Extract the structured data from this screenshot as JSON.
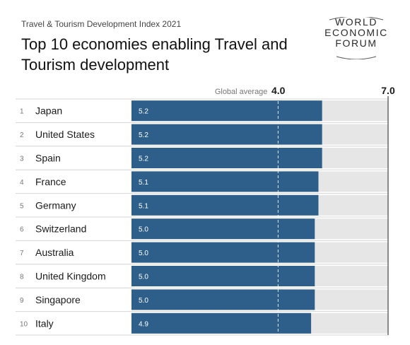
{
  "header": {
    "subtitle": "Travel & Tourism Development Index 2021",
    "title": "Top 10 economies enabling Travel and Tourism development"
  },
  "logo": {
    "lines": [
      "WORLD",
      "ECONOMIC",
      "FORUM"
    ]
  },
  "chart_data": {
    "type": "bar",
    "orientation": "horizontal",
    "title": "Top 10 economies enabling Travel and Tourism development",
    "categories": [
      "Japan",
      "United States",
      "Spain",
      "France",
      "Germany",
      "Switzerland",
      "Australia",
      "United Kingdom",
      "Singapore",
      "Italy"
    ],
    "ranks": [
      "1",
      "2",
      "3",
      "4",
      "5",
      "6",
      "7",
      "8",
      "9",
      "10"
    ],
    "values": [
      5.2,
      5.2,
      5.2,
      5.1,
      5.1,
      5.0,
      5.0,
      5.0,
      5.0,
      4.9
    ],
    "value_labels": [
      "5.2",
      "5.2",
      "5.2",
      "5.1",
      "5.1",
      "5.0",
      "5.0",
      "5.0",
      "5.0",
      "4.9"
    ],
    "xlim": [
      0,
      7.0
    ],
    "reference_line": {
      "label": "Global average",
      "value": 4.0,
      "value_label": "4.0"
    },
    "max_label": "7.0",
    "bar_color": "#2e5f8a",
    "track_color": "#e6e6e6"
  }
}
